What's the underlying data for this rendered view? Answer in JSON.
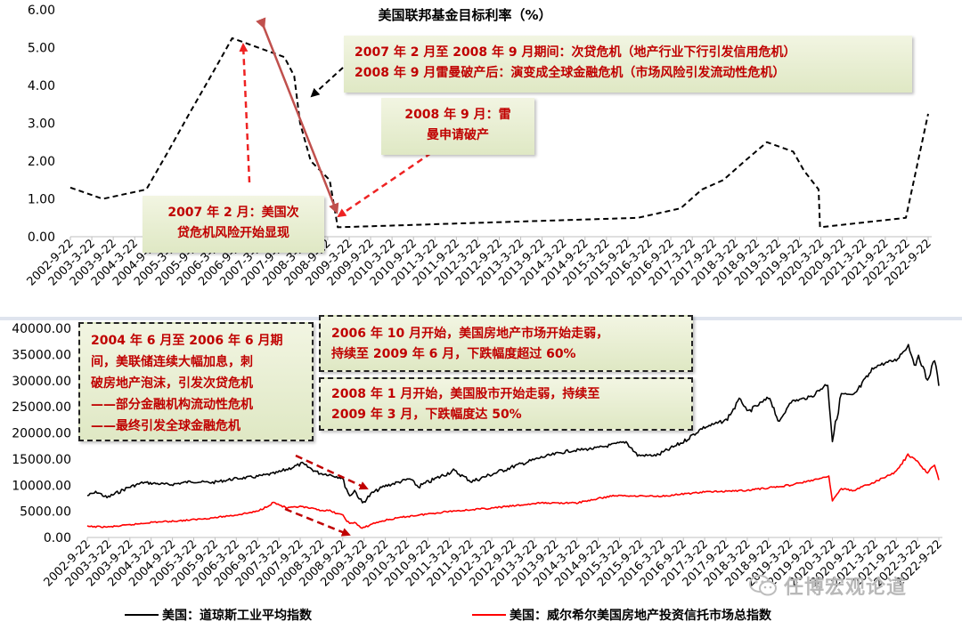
{
  "chart_data": [
    {
      "type": "line",
      "title": "美国联邦基金目标利率（%）",
      "ylim": [
        0,
        6
      ],
      "y_ticks": [
        "6.00",
        "5.00",
        "4.00",
        "3.00",
        "2.00",
        "1.00",
        "0.00"
      ],
      "x_ticks": [
        "2002-9-22",
        "2003-3-22",
        "2003-9-22",
        "2004-3-22",
        "2004-9-22",
        "2005-3-22",
        "2005-9-22",
        "2006-3-22",
        "2006-9-22",
        "2007-3-22",
        "2007-9-22",
        "2008-3-22",
        "2008-9-22",
        "2009-3-22",
        "2009-9-22",
        "2010-3-22",
        "2010-9-22",
        "2011-3-22",
        "2011-9-22",
        "2012-3-22",
        "2012-9-22",
        "2013-3-22",
        "2013-9-22",
        "2014-3-22",
        "2014-9-22",
        "2015-3-22",
        "2015-9-22",
        "2016-3-22",
        "2016-9-22",
        "2017-3-22",
        "2017-9-22",
        "2018-3-22",
        "2018-9-22",
        "2019-3-22",
        "2019-9-22",
        "2020-3-22",
        "2020-9-22",
        "2021-3-22",
        "2021-9-22",
        "2022-3-22",
        "2022-9-22"
      ],
      "series": [
        {
          "color": "#000000",
          "line_style": "dashed",
          "x": [
            "2002-09-22",
            "2003-06-25",
            "2004-06-30",
            "2005-01-01",
            "2005-06-30",
            "2006-01-01",
            "2006-07-01",
            "2007-09-18",
            "2007-12-11",
            "2008-01-30",
            "2008-04-30",
            "2008-10-08",
            "2008-12-16",
            "2015-12-16",
            "2016-12-14",
            "2017-06-14",
            "2017-12-13",
            "2018-06-13",
            "2018-12-19",
            "2019-07-31",
            "2019-10-30",
            "2020-03-03",
            "2020-03-15",
            "2022-03-16",
            "2022-09-22"
          ],
          "y": [
            1.3,
            1.0,
            1.25,
            2.25,
            3.25,
            4.25,
            5.25,
            4.75,
            4.25,
            3.0,
            2.0,
            1.5,
            0.25,
            0.5,
            0.75,
            1.25,
            1.5,
            2.0,
            2.5,
            2.25,
            1.75,
            1.25,
            0.25,
            0.5,
            3.25
          ]
        }
      ],
      "annotations": {
        "box_crisis": [
          "2007 年 2 月至 2008 年 9 月期间：次贷危机（地产行业下行引发信用危机）",
          "2008 年 9 月雷曼破产后：演变成全球金融危机（市场风险引发流动性危机）"
        ],
        "box_lehman": [
          "2008 年 9 月：雷",
          "曼申请破产"
        ],
        "box_subprime": [
          "2007 年 2 月：美国次",
          "贷危机风险开始显现"
        ]
      }
    },
    {
      "type": "line",
      "ylim": [
        0,
        40000
      ],
      "y_ticks": [
        "40000.00",
        "35000.00",
        "30000.00",
        "25000.00",
        "20000.00",
        "15000.00",
        "10000.00",
        "5000.00",
        "0.00"
      ],
      "x_ticks": [
        "2002-9-22",
        "2003-3-22",
        "2003-9-22",
        "2004-3-22",
        "2004-9-22",
        "2005-3-22",
        "2005-9-22",
        "2006-3-22",
        "2006-9-22",
        "2007-3-22",
        "2007-9-22",
        "2008-3-22",
        "2008-9-22",
        "2009-3-22",
        "2009-9-22",
        "2010-3-22",
        "2010-9-22",
        "2011-3-22",
        "2011-9-22",
        "2012-3-22",
        "2012-9-22",
        "2013-3-22",
        "2013-9-22",
        "2014-3-22",
        "2014-9-22",
        "2015-3-22",
        "2015-9-22",
        "2016-3-22",
        "2016-9-22",
        "2017-3-22",
        "2017-9-22",
        "2018-3-22",
        "2018-9-22",
        "2019-3-22",
        "2019-9-22",
        "2020-3-22",
        "2020-9-22",
        "2021-3-22",
        "2021-9-22",
        "2022-3-22",
        "2022-9-22"
      ],
      "series": [
        {
          "name": "美国：道琼斯工业平均指数",
          "color": "#000000",
          "x": [
            "2002-09-22",
            "2002-12-15",
            "2003-03-10",
            "2003-09-01",
            "2004-01-15",
            "2004-09-01",
            "2005-03-01",
            "2005-09-01",
            "2006-03-01",
            "2006-09-01",
            "2007-03-01",
            "2007-10-09",
            "2008-03-01",
            "2008-06-01",
            "2008-09-15",
            "2008-11-20",
            "2009-01-01",
            "2009-03-09",
            "2009-06-01",
            "2009-09-15",
            "2010-04-20",
            "2010-07-01",
            "2011-04-29",
            "2011-10-03",
            "2012-09-15",
            "2013-05-21",
            "2013-12-31",
            "2014-09-15",
            "2015-05-19",
            "2015-08-25",
            "2016-02-11",
            "2016-09-22",
            "2017-03-01",
            "2017-09-22",
            "2018-01-26",
            "2018-03-22",
            "2018-10-03",
            "2018-12-24",
            "2019-03-22",
            "2019-09-22",
            "2020-02-12",
            "2020-03-23",
            "2020-06-08",
            "2020-09-22",
            "2021-03-22",
            "2021-09-22",
            "2022-01-04",
            "2022-03-08",
            "2022-04-01",
            "2022-06-17",
            "2022-08-16",
            "2022-09-22"
          ],
          "y": [
            8000,
            8700,
            7600,
            9500,
            10500,
            10100,
            10700,
            10500,
            11200,
            11600,
            12300,
            14100,
            12300,
            12000,
            11400,
            7900,
            9000,
            6550,
            8500,
            9800,
            11200,
            9700,
            12800,
            10700,
            13500,
            15300,
            16500,
            17100,
            18300,
            15700,
            15700,
            18300,
            20900,
            22400,
            26600,
            23900,
            26800,
            21800,
            25900,
            26900,
            29500,
            18600,
            27500,
            27100,
            32700,
            34000,
            36800,
            32600,
            35000,
            29900,
            34100,
            29000
          ]
        },
        {
          "name": "美国：威尔希尔美国房地产投资信托市场总指数",
          "color": "#ff0000",
          "x": [
            "2002-09-22",
            "2003-03-22",
            "2003-09-22",
            "2004-03-22",
            "2004-09-22",
            "2005-03-22",
            "2005-09-22",
            "2006-03-22",
            "2006-09-22",
            "2007-02-07",
            "2007-06-01",
            "2007-09-22",
            "2008-03-22",
            "2008-06-01",
            "2008-09-22",
            "2008-11-20",
            "2009-01-01",
            "2009-03-06",
            "2009-06-01",
            "2009-09-22",
            "2010-03-22",
            "2011-03-22",
            "2012-03-22",
            "2013-05-21",
            "2014-03-22",
            "2015-01-27",
            "2016-03-22",
            "2017-03-22",
            "2018-03-22",
            "2019-03-22",
            "2020-02-21",
            "2020-03-23",
            "2020-06-08",
            "2020-09-22",
            "2021-03-22",
            "2021-09-22",
            "2021-12-31",
            "2022-03-22",
            "2022-06-17",
            "2022-08-16",
            "2022-09-22"
          ],
          "y": [
            2100,
            2000,
            2400,
            2900,
            3100,
            3400,
            3800,
            4300,
            5000,
            6700,
            5600,
            5900,
            5200,
            5100,
            4200,
            2600,
            2900,
            1700,
            2600,
            3300,
            4000,
            5000,
            5600,
            6600,
            6600,
            8000,
            7900,
            8700,
            9000,
            10000,
            11600,
            7100,
            9300,
            9000,
            10600,
            12600,
            15800,
            14500,
            12300,
            14000,
            11000
          ]
        }
      ],
      "annotations": {
        "box_hike": [
          "2004 年 6 月至 2006 年 6 月期",
          "间，美联储连续大幅加息，刺",
          "破房地产泡沫，引发次贷危机",
          "——部分金融机构流动性危机",
          "——最终引发全球金融危机"
        ],
        "box_housing": [
          "2006 年 10 月开始，美国房地产市场开始走弱，",
          "持续至 2009 年 6 月，下跌幅度超过 60%"
        ],
        "box_stock": [
          "2008 年 1 月开始，美国股市开始走弱，持续至",
          "2009 年 3 月，下跌幅度达 50%"
        ]
      }
    }
  ],
  "watermark": {
    "text": "任博宏观论道",
    "icon": "wechat-icon"
  }
}
